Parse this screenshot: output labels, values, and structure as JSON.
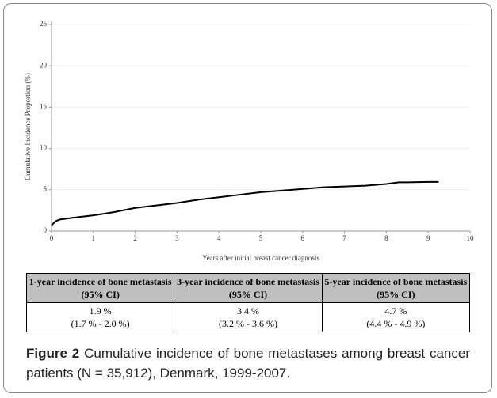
{
  "chart_data": {
    "type": "line",
    "y_label": "Cumulative Incidence Proportion (%)",
    "x_label": "Years after initial breast cancer diagnosis",
    "x": [
      0,
      0.1,
      0.2,
      0.5,
      1,
      1.5,
      2,
      2.5,
      3,
      3.5,
      4,
      4.5,
      5,
      5.5,
      6,
      6.5,
      7,
      7.5,
      8,
      8.3,
      8.5,
      9,
      9.25
    ],
    "series": [
      {
        "color": "#000000",
        "values": [
          0.7,
          1.2,
          1.4,
          1.6,
          1.9,
          2.3,
          2.8,
          3.1,
          3.4,
          3.8,
          4.1,
          4.4,
          4.7,
          4.9,
          5.1,
          5.3,
          5.4,
          5.5,
          5.7,
          5.9,
          5.9,
          5.95,
          5.95
        ]
      }
    ],
    "xlim": [
      0,
      10
    ],
    "ylim": [
      0,
      25
    ],
    "xticks": [
      0,
      1,
      2,
      3,
      4,
      5,
      6,
      7,
      8,
      9,
      10
    ],
    "yticks": [
      0,
      5,
      10,
      15,
      20,
      25
    ],
    "grid": true
  },
  "table": {
    "header": [
      [
        "1-year incidence of bone metastasis",
        "(95% CI)"
      ],
      [
        "3-year incidence of bone metastasis",
        "(95% CI)"
      ],
      [
        "5-year incidence of bone metastasis",
        "(95% CI)"
      ]
    ],
    "rows": [
      [
        "1.9 %",
        "3.4 %",
        "4.7 %"
      ],
      [
        "(1.7 % - 2.0 %)",
        "(3.2 % - 3.6 %)",
        "(4.4 % - 4.9 %)"
      ]
    ]
  },
  "caption": {
    "label": "Figure 2",
    "text": "Cumulative incidence of bone metastases among breast cancer patients (N = 35,912), Denmark, 1999-2007."
  }
}
